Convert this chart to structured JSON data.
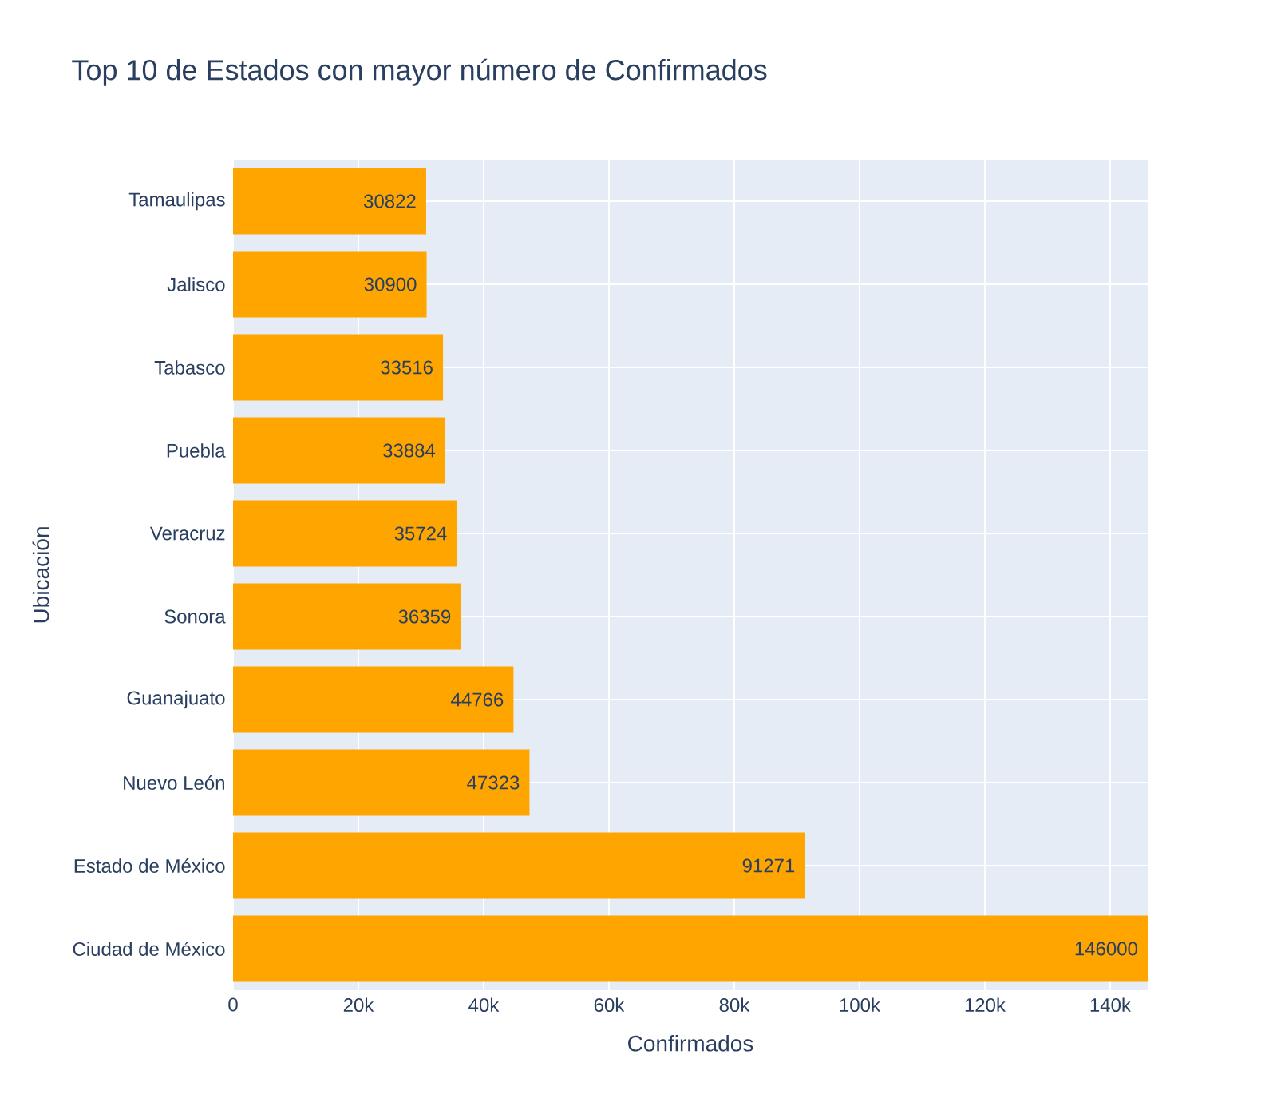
{
  "chart_data": {
    "type": "bar",
    "orientation": "horizontal",
    "title": "Top 10 de Estados con mayor número de Confirmados",
    "xlabel": "Confirmados",
    "ylabel": "Ubicación",
    "categories": [
      "Tamaulipas",
      "Jalisco",
      "Tabasco",
      "Puebla",
      "Veracruz",
      "Sonora",
      "Guanajuato",
      "Nuevo León",
      "Estado de México",
      "Ciudad de México"
    ],
    "values": [
      30822,
      30900,
      33516,
      33884,
      35724,
      36359,
      44766,
      47323,
      91271,
      146000
    ],
    "color": "#ffa500",
    "data_labels": true,
    "grid": true,
    "xlim": [
      0,
      146000
    ],
    "xticks": [
      0,
      {
        "value": 20000,
        "label": "20k"
      },
      {
        "value": 40000,
        "label": "40k"
      },
      {
        "value": 60000,
        "label": "60k"
      },
      {
        "value": 80000,
        "label": "80k"
      },
      {
        "value": 100000,
        "label": "100k"
      },
      {
        "value": 120000,
        "label": "120k"
      },
      {
        "value": 140000,
        "label": "140k"
      }
    ]
  }
}
